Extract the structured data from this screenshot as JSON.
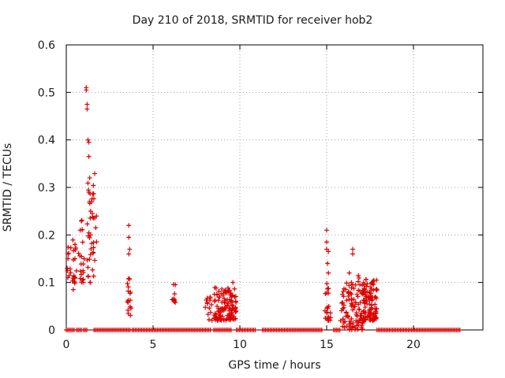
{
  "chart_data": {
    "type": "scatter",
    "title": "Day 210 of 2018, SRMTID for receiver hob2",
    "xlabel": "GPS time / hours",
    "ylabel": "SRMTID / TECUs",
    "xlim": [
      0,
      24
    ],
    "ylim": [
      0,
      0.6
    ],
    "xticks": [
      0,
      5,
      10,
      15,
      20
    ],
    "yticks": [
      0,
      0.1,
      0.2,
      0.3,
      0.4,
      0.5,
      0.6
    ],
    "ytick_labels": [
      "0",
      "0.1",
      "0.2",
      "0.3",
      "0.4",
      "0.5",
      "0.6"
    ],
    "grid": true,
    "marker": "+",
    "color": "#dd0000",
    "zero_intervals": [
      [
        0.0,
        0.5
      ],
      [
        0.6,
        0.9
      ],
      [
        1.0,
        1.2
      ],
      [
        1.6,
        3.7
      ],
      [
        3.8,
        8.3
      ],
      [
        8.5,
        9.5
      ],
      [
        9.8,
        10.9
      ],
      [
        11.3,
        14.8
      ],
      [
        15.4,
        15.8
      ],
      [
        17.9,
        22.7
      ]
    ],
    "clusters": [
      {
        "x": [
          0.0,
          0.6
        ],
        "y": [
          0.09,
          0.19
        ],
        "n": 22
      },
      {
        "x": [
          0.7,
          1.1
        ],
        "y": [
          0.1,
          0.24
        ],
        "n": 20
      },
      {
        "x": [
          1.2,
          1.75
        ],
        "y": [
          0.1,
          0.33
        ],
        "n": 40
      },
      {
        "x": [
          1.6,
          3.4
        ],
        "y": [
          0.0,
          0.0
        ],
        "n": 0
      },
      {
        "x": [
          3.5,
          3.75
        ],
        "y": [
          0.03,
          0.11
        ],
        "n": 16
      },
      {
        "x": [
          6.1,
          6.3
        ],
        "y": [
          0.05,
          0.1
        ],
        "n": 10
      },
      {
        "x": [
          8.0,
          8.4
        ],
        "y": [
          0.02,
          0.07
        ],
        "n": 14
      },
      {
        "x": [
          8.5,
          9.8
        ],
        "y": [
          0.02,
          0.09
        ],
        "n": 120
      },
      {
        "x": [
          14.9,
          15.25
        ],
        "y": [
          0.02,
          0.1
        ],
        "n": 22
      },
      {
        "x": [
          15.8,
          16.5
        ],
        "y": [
          0.0,
          0.1
        ],
        "n": 55
      },
      {
        "x": [
          16.5,
          17.1
        ],
        "y": [
          0.0,
          0.12
        ],
        "n": 50
      },
      {
        "x": [
          17.1,
          17.9
        ],
        "y": [
          0.02,
          0.11
        ],
        "n": 110
      }
    ],
    "points": [
      {
        "x": 0.1,
        "y": 0.16
      },
      {
        "x": 0.1,
        "y": 0.15
      },
      {
        "x": 0.05,
        "y": 0.13
      },
      {
        "x": 0.4,
        "y": 0.085
      },
      {
        "x": 0.5,
        "y": 0.18
      },
      {
        "x": 0.5,
        "y": 0.15
      },
      {
        "x": 0.5,
        "y": 0.11
      },
      {
        "x": 0.8,
        "y": 0.21
      },
      {
        "x": 1.15,
        "y": 0.51
      },
      {
        "x": 1.15,
        "y": 0.505
      },
      {
        "x": 1.2,
        "y": 0.475
      },
      {
        "x": 1.2,
        "y": 0.465
      },
      {
        "x": 1.25,
        "y": 0.4
      },
      {
        "x": 1.3,
        "y": 0.395
      },
      {
        "x": 1.3,
        "y": 0.365
      },
      {
        "x": 1.35,
        "y": 0.32
      },
      {
        "x": 1.3,
        "y": 0.29
      },
      {
        "x": 1.4,
        "y": 0.25
      },
      {
        "x": 1.5,
        "y": 0.245
      },
      {
        "x": 1.4,
        "y": 0.2
      },
      {
        "x": 3.6,
        "y": 0.22
      },
      {
        "x": 3.6,
        "y": 0.195
      },
      {
        "x": 3.65,
        "y": 0.17
      },
      {
        "x": 3.6,
        "y": 0.16
      },
      {
        "x": 9.6,
        "y": 0.1
      },
      {
        "x": 15.0,
        "y": 0.21
      },
      {
        "x": 15.0,
        "y": 0.185
      },
      {
        "x": 15.0,
        "y": 0.17
      },
      {
        "x": 15.1,
        "y": 0.165
      },
      {
        "x": 15.05,
        "y": 0.14
      },
      {
        "x": 15.1,
        "y": 0.12
      },
      {
        "x": 16.5,
        "y": 0.17
      },
      {
        "x": 16.5,
        "y": 0.16
      },
      {
        "x": 16.3,
        "y": 0.12
      }
    ]
  }
}
